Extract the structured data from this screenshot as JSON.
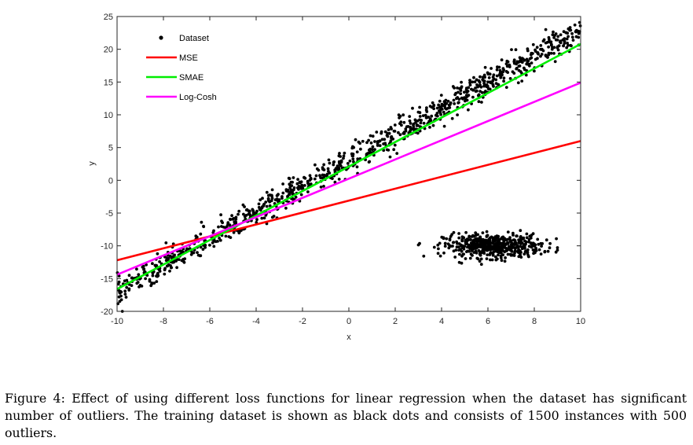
{
  "chart_data": {
    "type": "scatter",
    "xlabel": "x",
    "ylabel": "y",
    "xlim": [
      -10,
      10
    ],
    "ylim": [
      -20,
      25
    ],
    "x_ticks": [
      -10,
      -8,
      -6,
      -4,
      -2,
      0,
      2,
      4,
      6,
      8,
      10
    ],
    "y_ticks": [
      25,
      20,
      15,
      10,
      5,
      0,
      -5,
      -10,
      -15,
      -20
    ],
    "grid": false,
    "legend_position": "top-left",
    "series": [
      {
        "name": "Dataset",
        "kind": "scatter",
        "color": "#000000",
        "description_of_distribution": {
          "inliers": {
            "count": 1000,
            "x_range": [
              -10,
              10
            ],
            "trend_slope": 2,
            "trend_intercept": 3
          },
          "outliers": {
            "count": 500,
            "x_range": [
              3,
              9
            ],
            "y_center": -10
          }
        }
      },
      {
        "name": "MSE",
        "kind": "line",
        "color": "#ff0000",
        "x": [
          -10,
          10
        ],
        "y": [
          -12.2,
          6.0
        ]
      },
      {
        "name": "SMAE",
        "kind": "line",
        "color": "#00ee00",
        "x": [
          -10,
          10
        ],
        "y": [
          -16.6,
          20.8
        ]
      },
      {
        "name": "Log-Cosh",
        "kind": "line",
        "color": "#ff00ff",
        "x": [
          -10,
          10
        ],
        "y": [
          -14.4,
          14.9
        ]
      }
    ]
  },
  "caption": {
    "text": "Figure 4: Effect of using different loss functions for linear regression when the dataset has significant number of outliers. The training dataset is shown as black dots and consists of 1500 instances with 500 outliers."
  }
}
